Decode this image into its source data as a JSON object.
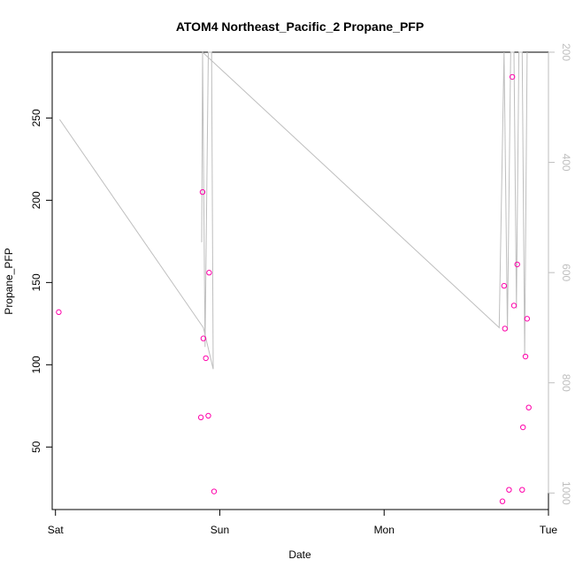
{
  "chart_data": {
    "type": "scatter",
    "title": "ATOM4 Northeast_Pacific_2 Propane_PFP",
    "xlabel": "Date",
    "ylabel": "Propane_PFP",
    "x_ticks": [
      "Sat",
      "Sun",
      "Mon",
      "Tue"
    ],
    "xlim_days": [
      -0.02,
      3.0
    ],
    "ylim": [
      12,
      290
    ],
    "y_ticks": [
      50,
      100,
      150,
      200,
      250
    ],
    "y2_ticks": [
      200,
      400,
      600,
      800,
      1000
    ],
    "y2lim_reversed": [
      200,
      1030
    ],
    "grid": false,
    "points_color": "#ff00aa",
    "line_color": "#bebebe",
    "points": [
      {
        "x": 0.02,
        "y": 132
      },
      {
        "x": 0.885,
        "y": 68
      },
      {
        "x": 0.895,
        "y": 205
      },
      {
        "x": 0.9,
        "y": 116
      },
      {
        "x": 0.915,
        "y": 104
      },
      {
        "x": 0.93,
        "y": 69
      },
      {
        "x": 0.935,
        "y": 156
      },
      {
        "x": 0.965,
        "y": 23
      },
      {
        "x": 2.72,
        "y": 17
      },
      {
        "x": 2.73,
        "y": 148
      },
      {
        "x": 2.735,
        "y": 122
      },
      {
        "x": 2.76,
        "y": 24
      },
      {
        "x": 2.78,
        "y": 275
      },
      {
        "x": 2.79,
        "y": 136
      },
      {
        "x": 2.81,
        "y": 161
      },
      {
        "x": 2.84,
        "y": 24
      },
      {
        "x": 2.845,
        "y": 62
      },
      {
        "x": 2.86,
        "y": 105
      },
      {
        "x": 2.87,
        "y": 128
      },
      {
        "x": 2.88,
        "y": 74
      }
    ],
    "pressure_series": [
      {
        "x": 0.025,
        "y": 322
      },
      {
        "x": 0.9,
        "y": 700
      },
      {
        "x": 0.96,
        "y": 775
      },
      {
        "x": 0.95,
        "y": 200
      },
      {
        "x": 0.93,
        "y": 200
      },
      {
        "x": 0.91,
        "y": 735
      },
      {
        "x": 0.895,
        "y": 200
      },
      {
        "x": 0.89,
        "y": 545
      },
      {
        "x": 0.895,
        "y": 200
      },
      {
        "x": 2.7,
        "y": 700
      },
      {
        "x": 2.73,
        "y": 200
      },
      {
        "x": 2.75,
        "y": 705
      },
      {
        "x": 2.77,
        "y": 200
      },
      {
        "x": 2.79,
        "y": 200
      },
      {
        "x": 2.805,
        "y": 665
      },
      {
        "x": 2.82,
        "y": 200
      },
      {
        "x": 2.84,
        "y": 200
      },
      {
        "x": 2.855,
        "y": 750
      },
      {
        "x": 2.87,
        "y": 200
      }
    ]
  }
}
